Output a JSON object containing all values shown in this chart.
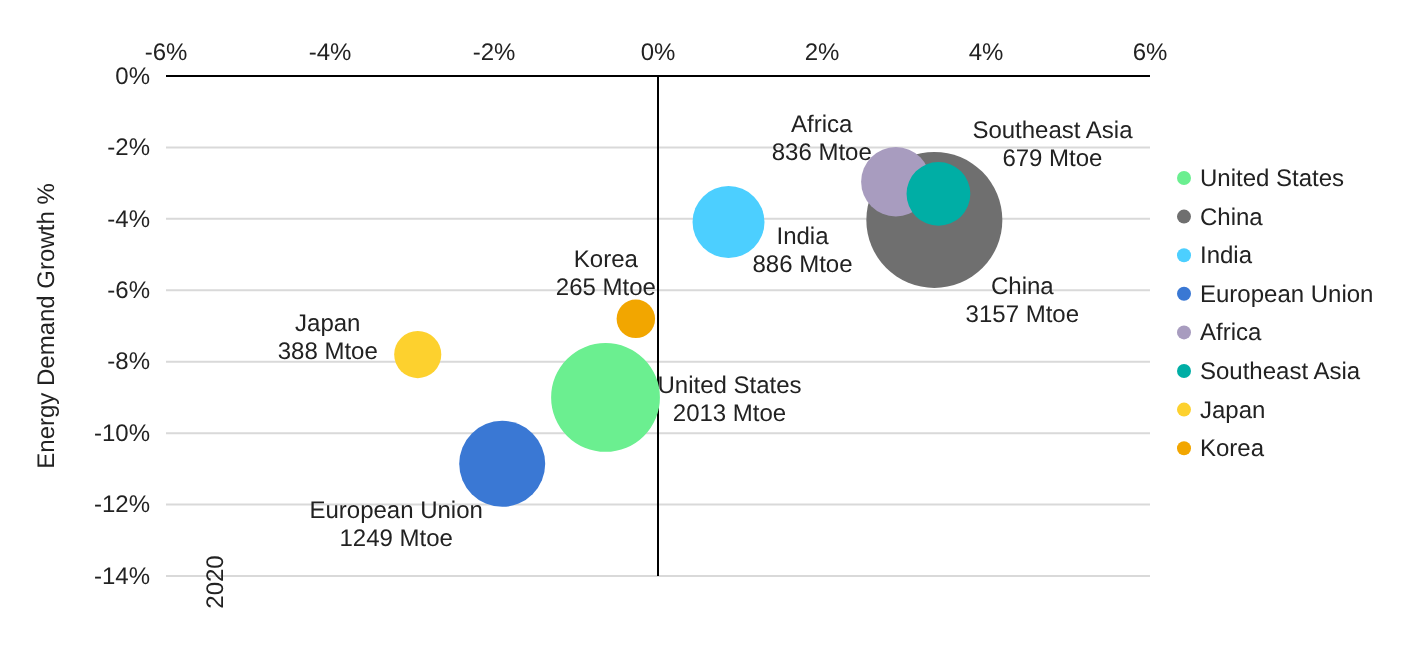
{
  "chart_data": {
    "type": "bubble",
    "ylabel": "Energy Demand Growth %",
    "xlim": [
      -6,
      6
    ],
    "xticks": [
      {
        "value": -6,
        "label": "-6%"
      },
      {
        "value": -4,
        "label": "-4%"
      },
      {
        "value": -2,
        "label": "-2%"
      },
      {
        "value": 0,
        "label": "0%"
      },
      {
        "value": 2,
        "label": "2%"
      },
      {
        "value": 4,
        "label": "4%"
      },
      {
        "value": 6,
        "label": "6%"
      }
    ],
    "ylim": [
      -14,
      0
    ],
    "yticks": [
      {
        "value": 0,
        "label": "0%"
      },
      {
        "value": -2,
        "label": "-2%"
      },
      {
        "value": -4,
        "label": "-4%"
      },
      {
        "value": -6,
        "label": "-6%"
      },
      {
        "value": -8,
        "label": "-8%"
      },
      {
        "value": -10,
        "label": "-10%"
      },
      {
        "value": -12,
        "label": "-12%"
      },
      {
        "value": -14,
        "label": "-14%"
      }
    ],
    "grid": "y",
    "legend": "right",
    "marker": "circle",
    "series": [
      {
        "name": "United States",
        "color": "#6bef90",
        "x": [
          -0.64
        ],
        "values": [
          -9.0
        ],
        "sizes": [
          0.64
        ]
      },
      {
        "name": "China",
        "color": "#6f6f6f",
        "x": [
          3.37
        ],
        "values": [
          -4.03
        ],
        "sizes": [
          1
        ]
      },
      {
        "name": "India",
        "color": "#4ccfff",
        "x": [
          0.86
        ],
        "values": [
          -4.09
        ],
        "sizes": [
          0.28
        ]
      },
      {
        "name": "European Union",
        "color": "#3a78d4",
        "x": [
          -1.9
        ],
        "values": [
          -10.86
        ],
        "sizes": [
          0.4
        ]
      },
      {
        "name": "Africa",
        "color": "#a89cbf",
        "x": [
          2.9
        ],
        "values": [
          -2.96
        ],
        "sizes": [
          0.26
        ]
      },
      {
        "name": "Southeast Asia",
        "color": "#00aea5",
        "x": [
          3.42
        ],
        "values": [
          -3.3
        ],
        "sizes": [
          0.22
        ]
      },
      {
        "name": "Japan",
        "color": "#fdd12e",
        "x": [
          -2.93
        ],
        "values": [
          -7.8
        ],
        "sizes": [
          0.12
        ]
      },
      {
        "name": "Korea",
        "color": "#f2a600",
        "x": [
          -0.27
        ],
        "values": [
          -6.8
        ],
        "sizes": [
          0.08
        ]
      }
    ],
    "annotations": [
      {
        "text": "Africa\n836 Mtoe",
        "x": 2.9,
        "y": -2.96
      },
      {
        "text": "Southeast Asia\n679 Mtoe",
        "x": 3.42,
        "y": -3.3
      },
      {
        "text": "India\n886 Mtoe",
        "x": 0.86,
        "y": -4.09
      },
      {
        "text": "China\n3157 Mtoe",
        "x": 3.37,
        "y": -4.03
      },
      {
        "text": "United States\n2013 Mtoe",
        "x": -0.64,
        "y": -9.0
      },
      {
        "text": "Korea\n265 Mtoe",
        "x": -0.27,
        "y": -6.8
      },
      {
        "text": "Japan\n388 Mtoe",
        "x": -2.93,
        "y": -7.8
      },
      {
        "text": "European Union\n1249 Mtoe",
        "x": -1.9,
        "y": -10.86
      },
      "2020"
    ]
  }
}
